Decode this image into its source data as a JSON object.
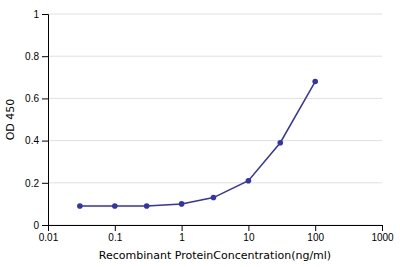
{
  "chart_data": {
    "type": "line",
    "x": [
      0.03,
      0.1,
      0.3,
      1,
      3,
      10,
      30,
      100
    ],
    "values": [
      0.09,
      0.09,
      0.09,
      0.1,
      0.13,
      0.21,
      0.39,
      0.68
    ],
    "xlabel": "Recombinant ProteinConcentration(ng/ml)",
    "ylabel": "OD 450",
    "xlim": [
      0.01,
      1000
    ],
    "ylim": [
      0,
      1
    ],
    "xticks": [
      0.01,
      0.1,
      1,
      10,
      100,
      1000
    ],
    "yticks": [
      0,
      0.2,
      0.4,
      0.6,
      0.8,
      1
    ],
    "log": "x",
    "grid": "y",
    "color": "#3333aa",
    "marker": "circle"
  }
}
